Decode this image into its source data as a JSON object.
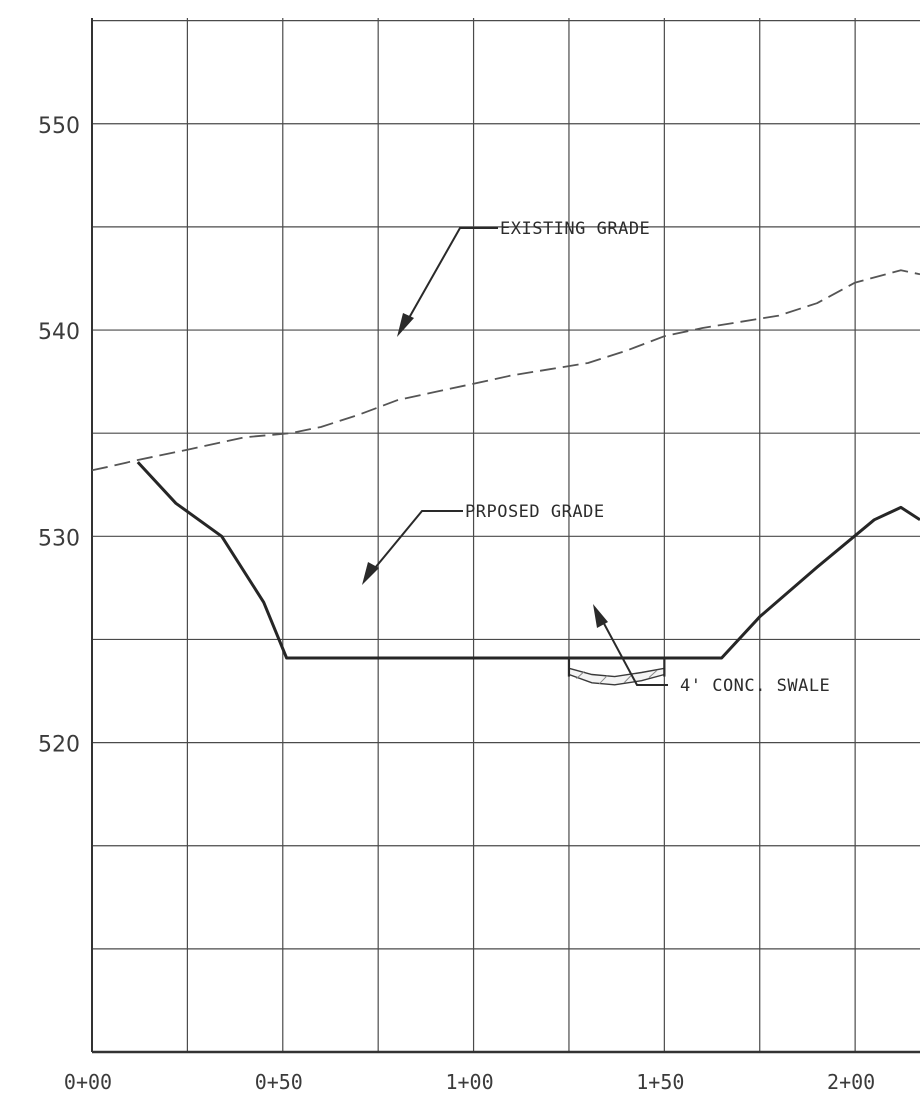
{
  "chart_data": {
    "type": "line",
    "title": "",
    "xlabel": "",
    "ylabel": "",
    "xlim": [
      0,
      217
    ],
    "ylim": [
      505,
      556
    ],
    "grid": true,
    "x_ticks": [
      0,
      50,
      100,
      150,
      200
    ],
    "x_tick_labels": [
      "0+00",
      "0+50",
      "1+00",
      "1+50",
      "2+00"
    ],
    "y_ticks": [
      520,
      530,
      540,
      550
    ],
    "y_tick_labels": [
      "520",
      "530",
      "540",
      "550"
    ],
    "series": [
      {
        "style": "dashed",
        "x": [
          0,
          5,
          12,
          25,
          40,
          52,
          60,
          70,
          80,
          90,
          100,
          110,
          120,
          130,
          140,
          150,
          160,
          170,
          180,
          190,
          200,
          212,
          217
        ],
        "y": [
          533.2,
          533.4,
          533.7,
          534.2,
          534.8,
          535.0,
          535.3,
          535.9,
          536.6,
          537.0,
          537.4,
          537.8,
          538.1,
          538.4,
          539.0,
          539.7,
          540.1,
          540.4,
          540.7,
          541.3,
          542.3,
          542.9,
          542.7
        ]
      },
      {
        "style": "solid",
        "x": [
          12,
          22,
          34,
          45,
          51,
          65,
          80,
          100,
          125,
          150,
          165,
          175,
          190,
          205,
          212,
          217
        ],
        "y": [
          533.6,
          531.6,
          530.0,
          526.8,
          524.1,
          524.1,
          524.1,
          524.1,
          524.1,
          524.1,
          524.1,
          526.1,
          528.5,
          530.8,
          531.4,
          530.8
        ]
      }
    ],
    "swale": {
      "x": [
        125,
        131,
        137,
        144,
        150
      ],
      "y_top": [
        523.6,
        523.3,
        523.2,
        523.4,
        523.6
      ],
      "y_bottom": [
        523.3,
        522.9,
        522.8,
        523.0,
        523.3
      ]
    },
    "annotations": [
      {
        "text": "EXISTING GRADE",
        "target": [
          80,
          536.6
        ]
      },
      {
        "text": "PRPOSED GRADE",
        "target": [
          70,
          524.1
        ]
      },
      {
        "text": "4' CONC. SWALE",
        "target": [
          132,
          522.8
        ]
      }
    ]
  }
}
